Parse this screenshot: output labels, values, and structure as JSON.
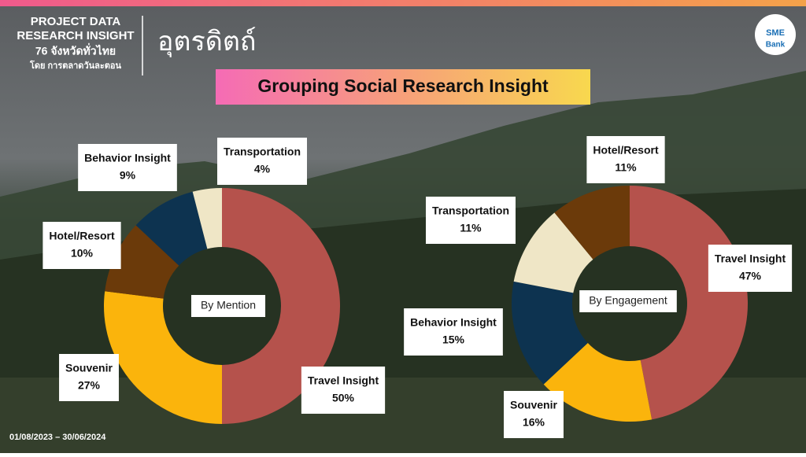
{
  "header": {
    "line1": "PROJECT DATA",
    "line2": "RESEARCH INSIGHT",
    "line3": "76 จังหวัดทั่วไทย",
    "line4": "โดย การตลาดวันละตอน",
    "province": "อุตรดิตถ์",
    "title": "Grouping Social Research Insight",
    "logo_top": "SME",
    "logo_bottom": "Bank"
  },
  "date_range": "01/08/2023 – 30/06/2024",
  "chart_data": [
    {
      "type": "pie",
      "center_label": "By Mention",
      "categories": [
        "Travel Insight",
        "Souvenir",
        "Hotel/Resort",
        "Behavior Insight",
        "Transportation"
      ],
      "values": [
        50,
        27,
        10,
        9,
        4
      ],
      "value_labels": [
        "50%",
        "27%",
        "10%",
        "9%",
        "4%"
      ],
      "colors": [
        "#b5524c",
        "#fbb40c",
        "#6b3a0a",
        "#0d3350",
        "#efe6c6"
      ]
    },
    {
      "type": "pie",
      "center_label": "By Engagement",
      "categories": [
        "Travel Insight",
        "Souvenir",
        "Behavior Insight",
        "Transportation",
        "Hotel/Resort"
      ],
      "values": [
        47,
        16,
        15,
        11,
        11
      ],
      "value_labels": [
        "47%",
        "16%",
        "15%",
        "11%",
        "11%"
      ],
      "colors": [
        "#b5524c",
        "#fbb40c",
        "#0d3350",
        "#efe6c6",
        "#6b3a0a"
      ]
    }
  ]
}
